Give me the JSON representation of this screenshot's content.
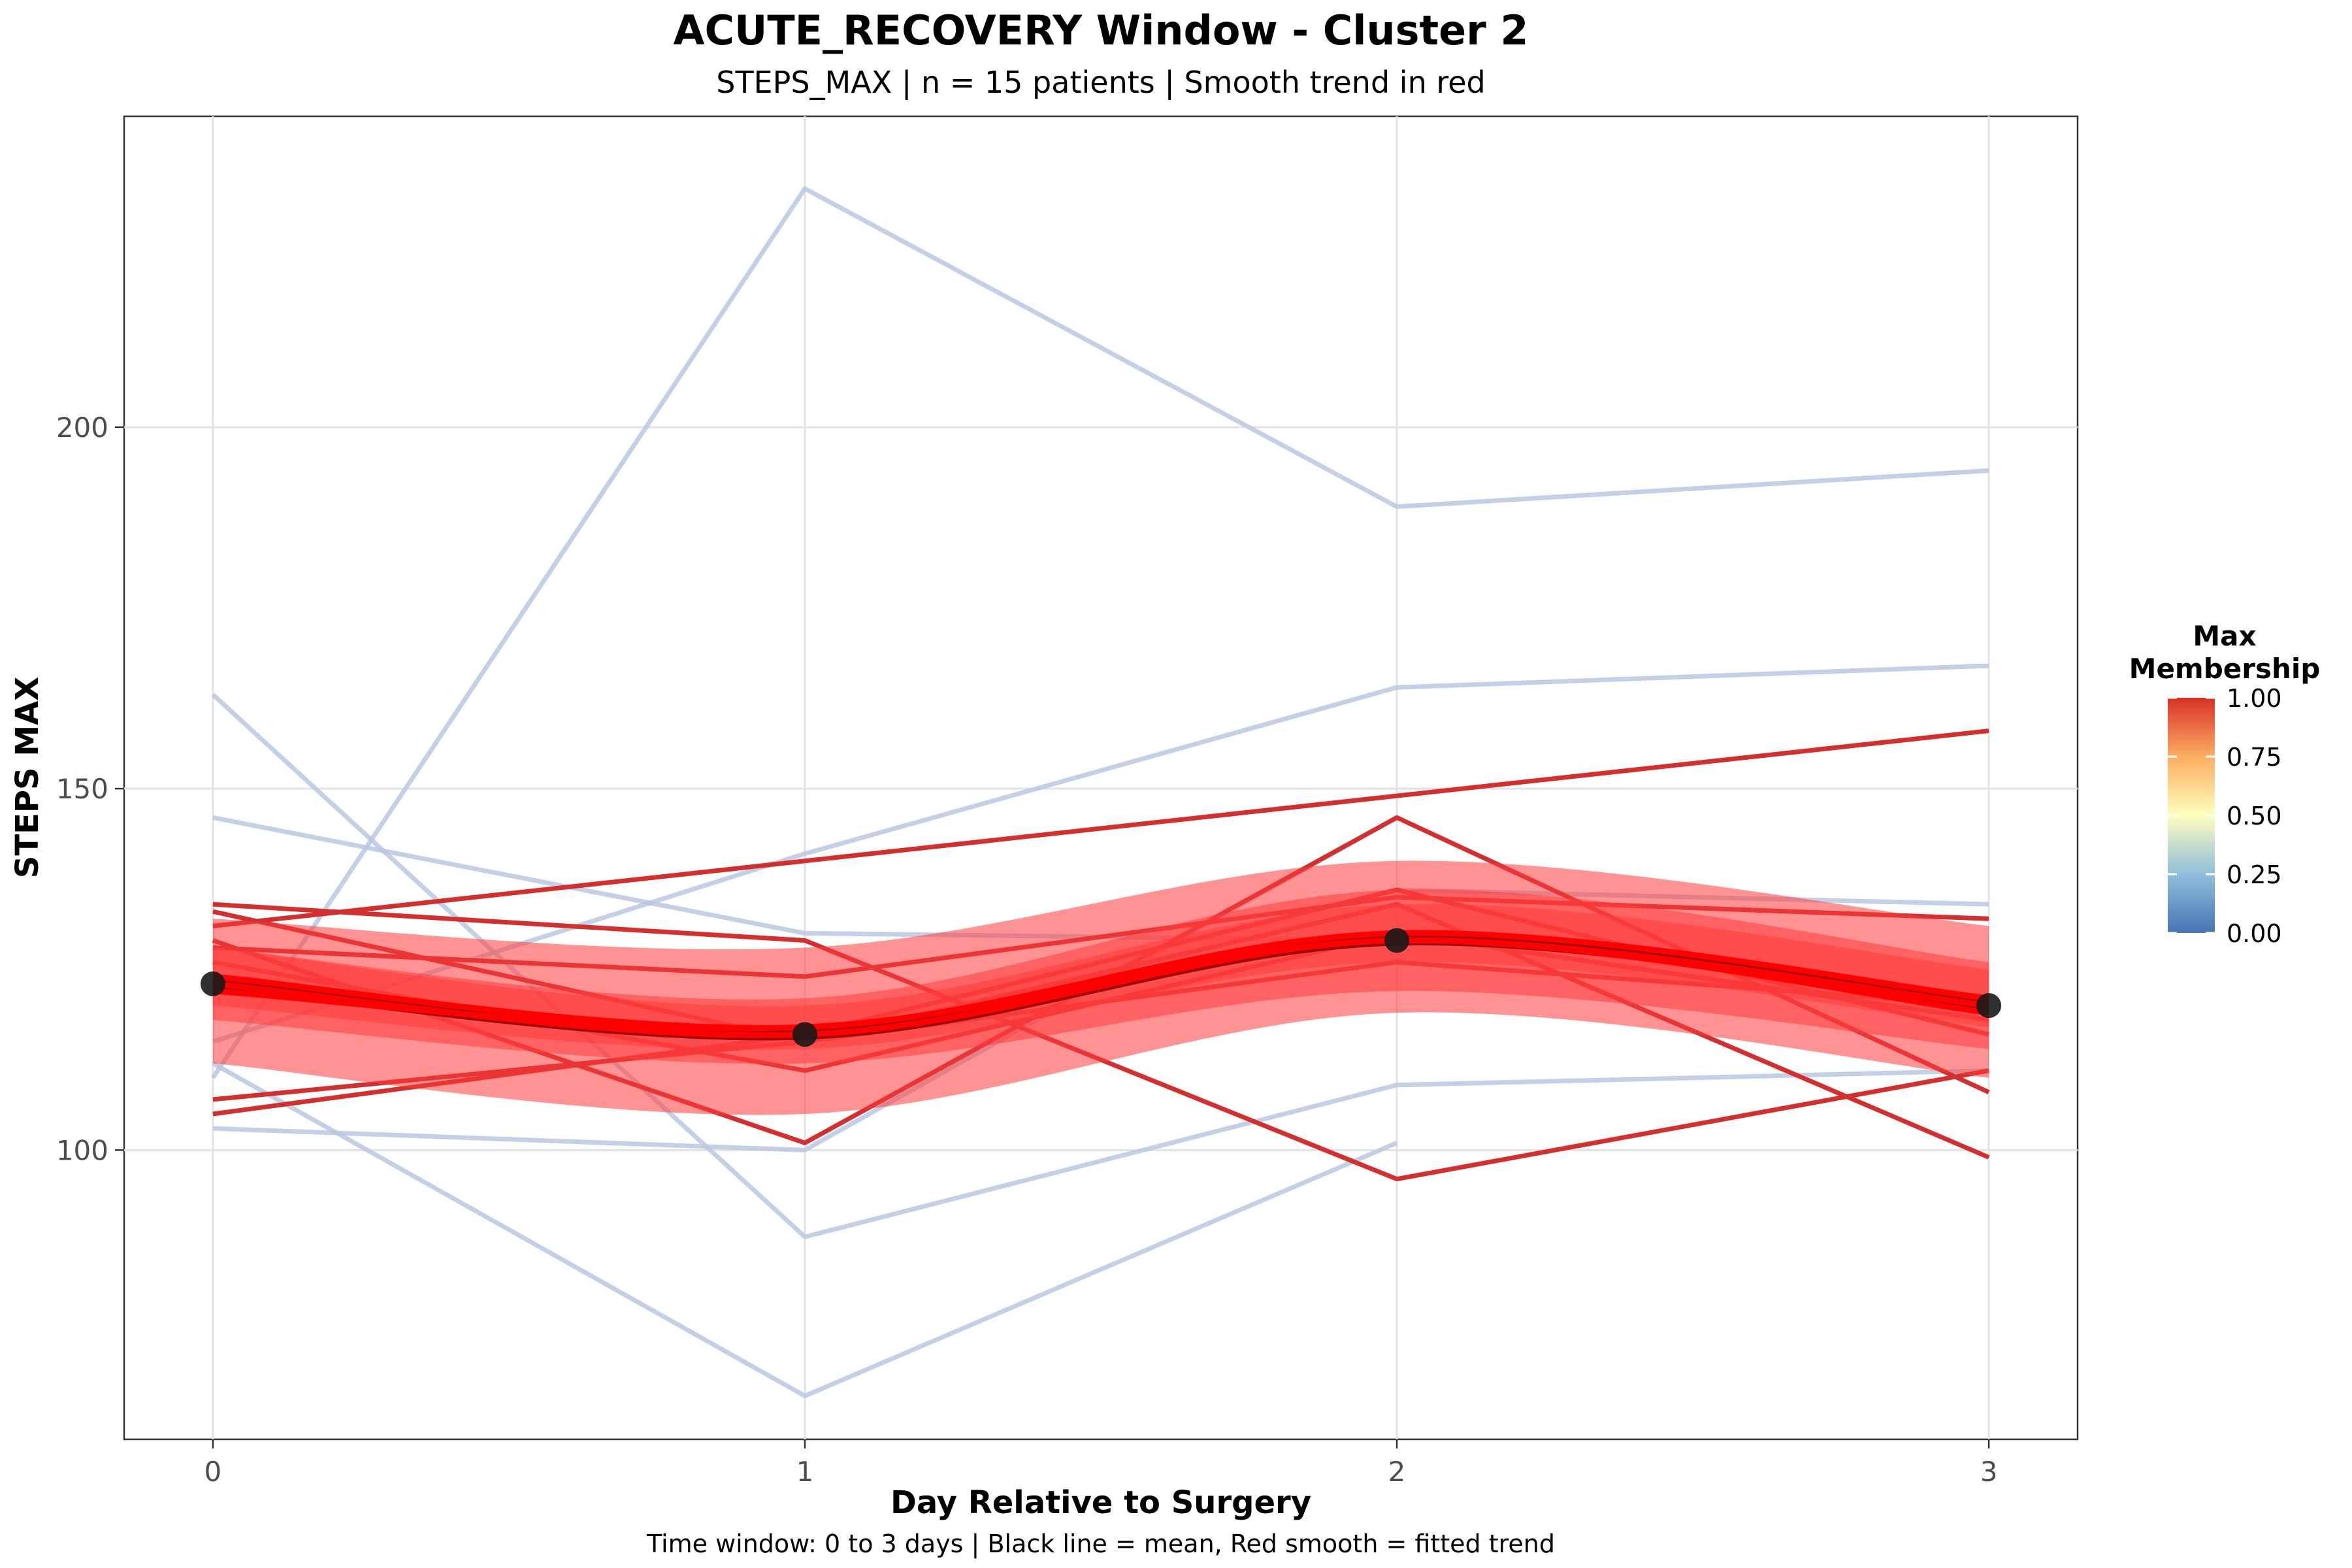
{
  "chart_data": {
    "type": "line",
    "title": "ACUTE_RECOVERY Window - Cluster 2",
    "subtitle": "STEPS_MAX | n = 15 patients | Smooth trend in red",
    "caption": "Time window: 0 to 3 days | Black line = mean, Red smooth = fitted trend",
    "xlabel": "Day Relative to Surgery",
    "ylabel": "STEPS MAX",
    "x": [
      0,
      1,
      2,
      3
    ],
    "xlim": [
      -0.15,
      3.15
    ],
    "ylim": [
      60,
      243
    ],
    "x_ticks": [
      0,
      1,
      2,
      3
    ],
    "y_ticks": [
      100,
      150,
      200
    ],
    "grid": true,
    "legend": {
      "position": "right",
      "title": "Max\nMembership",
      "ticks": [
        "0.00",
        "0.25",
        "0.50",
        "0.75",
        "1.00"
      ],
      "colormap": [
        "#4575b4",
        "#91bfdb",
        "#ffffbf",
        "#fdae61",
        "#d73027"
      ]
    },
    "colors": {
      "low_membership": "#b8c8e0",
      "high_membership": "#d32f2f",
      "smooth": "#ff0000",
      "ribbon": "#ff3b3b",
      "mean": "#000000"
    },
    "series": [
      {
        "membership": 0.2,
        "values": [
          110,
          233,
          189,
          194
        ]
      },
      {
        "membership": 0.2,
        "values": [
          163,
          88,
          109,
          111
        ]
      },
      {
        "membership": 0.2,
        "values": [
          146,
          130,
          129,
          null
        ]
      },
      {
        "membership": 0.2,
        "values": [
          115,
          141,
          164,
          167
        ]
      },
      {
        "membership": 0.2,
        "values": [
          103,
          100,
          146,
          null
        ]
      },
      {
        "membership": 0.2,
        "values": [
          112,
          66,
          101,
          null
        ]
      },
      {
        "membership": 0.2,
        "values": [
          null,
          null,
          136,
          134
        ]
      },
      {
        "membership": 1.0,
        "values": [
          131,
          140,
          149,
          158
        ]
      },
      {
        "membership": 1.0,
        "values": [
          134,
          129,
          96,
          111
        ]
      },
      {
        "membership": 1.0,
        "values": [
          129,
          101,
          146,
          108
        ]
      },
      {
        "membership": 1.0,
        "values": [
          128,
          124,
          135,
          132
        ]
      },
      {
        "membership": 1.0,
        "values": [
          133,
          115,
          134,
          99
        ]
      },
      {
        "membership": 1.0,
        "values": [
          107,
          115,
          126,
          120
        ]
      },
      {
        "membership": 1.0,
        "values": [
          105,
          116,
          136,
          116
        ]
      },
      {
        "membership": 1.0,
        "values": [
          126,
          111,
          130,
          118
        ]
      }
    ],
    "mean": {
      "values": [
        123,
        116,
        129,
        120
      ]
    },
    "smooths": [
      {
        "lower": [
          112,
          105,
          119,
          110
        ],
        "fit": [
          122,
          117,
          129,
          120
        ],
        "upper": [
          132,
          128,
          140,
          131
        ]
      },
      {
        "lower": [
          118,
          112,
          122,
          114
        ],
        "fit": [
          123,
          116,
          129,
          119
        ],
        "upper": [
          128,
          121,
          136,
          126
        ]
      },
      {
        "lower": [
          120,
          114,
          126,
          117
        ],
        "fit": [
          124,
          117,
          130,
          121
        ],
        "upper": [
          128,
          120,
          134,
          125
        ]
      }
    ]
  }
}
